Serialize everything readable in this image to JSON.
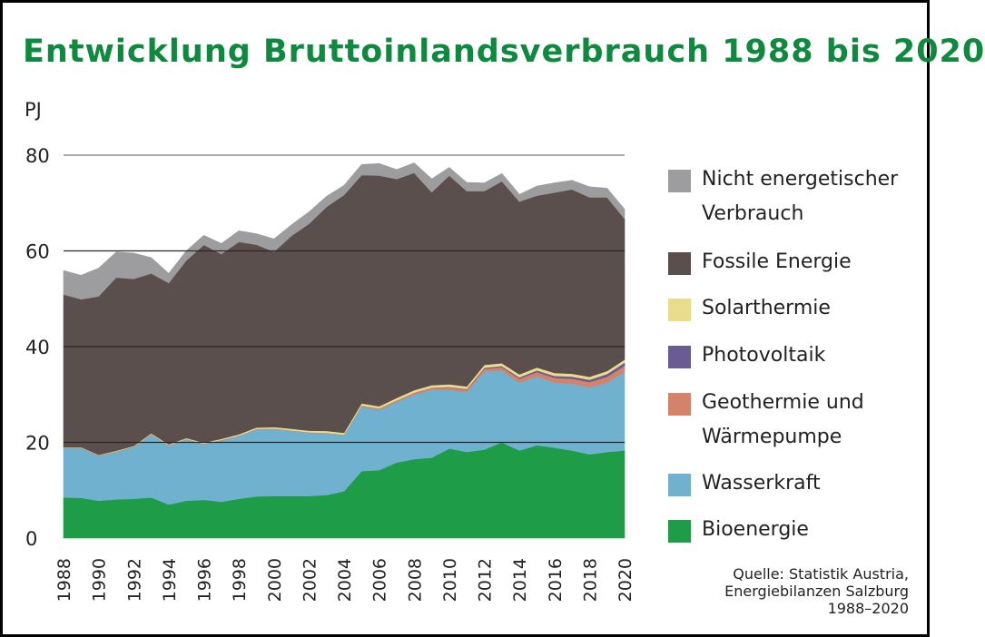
{
  "chart_data": {
    "type": "area",
    "stacked": true,
    "title": "Entwicklung Bruttoinlandsverbrauch 1988 bis 2020",
    "ylabel": "PJ",
    "xlabel": "",
    "ylim": [
      0,
      80
    ],
    "yticks": [
      0,
      20,
      40,
      60,
      80
    ],
    "grid": true,
    "legend_position": "right",
    "x": [
      1988,
      1989,
      1990,
      1991,
      1992,
      1993,
      1994,
      1995,
      1996,
      1997,
      1998,
      1999,
      2000,
      2001,
      2002,
      2003,
      2004,
      2005,
      2006,
      2007,
      2008,
      2009,
      2010,
      2011,
      2012,
      2013,
      2014,
      2015,
      2016,
      2017,
      2018,
      2019,
      2020
    ],
    "xticks": [
      "1988",
      "1990",
      "1992",
      "1994",
      "1996",
      "1998",
      "2000",
      "2002",
      "2004",
      "2006",
      "2008",
      "2010",
      "2012",
      "2014",
      "2016",
      "2018",
      "2020"
    ],
    "series": [
      {
        "name": "Bioenergie",
        "color": "#1e9c48",
        "values": [
          8.5,
          8.4,
          7.8,
          8.1,
          8.2,
          8.5,
          7.0,
          7.8,
          8.0,
          7.6,
          8.2,
          8.7,
          8.8,
          8.8,
          8.8,
          9.0,
          9.8,
          14.0,
          14.2,
          15.8,
          16.5,
          16.8,
          18.7,
          18.0,
          18.5,
          20.0,
          18.3,
          19.4,
          18.9,
          18.3,
          17.5,
          18.0,
          18.3
        ]
      },
      {
        "name": "Wasserkraft",
        "color": "#6fb1cf",
        "values": [
          10.3,
          10.4,
          9.4,
          9.9,
          10.8,
          13.1,
          12.3,
          12.8,
          11.6,
          12.8,
          13.1,
          14.0,
          14.0,
          13.6,
          13.2,
          12.9,
          11.7,
          13.5,
          12.6,
          12.7,
          13.5,
          14.2,
          12.3,
          12.5,
          16.3,
          15.0,
          14.2,
          14.4,
          13.6,
          14.0,
          14.0,
          14.5,
          16.5
        ]
      },
      {
        "name": "Geothermie und\nWärmepumpe",
        "color": "#d4826a",
        "values": [
          0.1,
          0.1,
          0.1,
          0.1,
          0.1,
          0.1,
          0.1,
          0.1,
          0.1,
          0.1,
          0.1,
          0.1,
          0.1,
          0.1,
          0.1,
          0.1,
          0.1,
          0.2,
          0.3,
          0.3,
          0.4,
          0.4,
          0.5,
          0.5,
          0.6,
          0.7,
          0.8,
          0.9,
          1.0,
          1.0,
          1.1,
          1.2,
          1.2
        ]
      },
      {
        "name": "Photovoltaik",
        "color": "#6b5b95",
        "values": [
          0,
          0,
          0,
          0,
          0,
          0,
          0,
          0,
          0,
          0,
          0,
          0,
          0,
          0,
          0,
          0,
          0,
          0,
          0,
          0,
          0,
          0.05,
          0.1,
          0.15,
          0.2,
          0.25,
          0.3,
          0.35,
          0.4,
          0.45,
          0.5,
          0.6,
          0.7
        ]
      },
      {
        "name": "Solarthermie",
        "color": "#e9dc8a",
        "values": [
          0.1,
          0.1,
          0.1,
          0.15,
          0.15,
          0.2,
          0.2,
          0.2,
          0.25,
          0.25,
          0.3,
          0.3,
          0.3,
          0.35,
          0.35,
          0.4,
          0.4,
          0.45,
          0.45,
          0.5,
          0.5,
          0.5,
          0.55,
          0.55,
          0.6,
          0.6,
          0.6,
          0.6,
          0.6,
          0.6,
          0.6,
          0.6,
          0.6
        ]
      },
      {
        "name": "Fossile Energie",
        "color": "#5a4f4c",
        "values": [
          31.9,
          30.9,
          33.1,
          36.2,
          34.9,
          33.4,
          33.7,
          37.1,
          41.3,
          38.6,
          40.2,
          38.2,
          36.6,
          40.3,
          43.2,
          46.8,
          49.7,
          47.7,
          48.2,
          45.7,
          45.4,
          40.3,
          43.6,
          40.8,
          36.3,
          38.0,
          36.1,
          35.9,
          37.7,
          38.5,
          37.5,
          36.3,
          29.4
        ]
      },
      {
        "name": "Nicht energetischer\nVerbrauch",
        "color": "#9d9d9f",
        "values": [
          5.0,
          5.0,
          5.9,
          5.3,
          5.4,
          3.3,
          2.0,
          2.0,
          2.0,
          2.2,
          2.3,
          2.3,
          2.7,
          2.3,
          2.5,
          2.2,
          2.0,
          2.2,
          2.5,
          2.0,
          2.1,
          2.8,
          1.7,
          1.8,
          1.7,
          1.6,
          1.5,
          2.0,
          2.0,
          1.9,
          2.2,
          1.9,
          2.0
        ]
      }
    ],
    "source": "Quelle: Statistik Austria,\nEnergiebilanzen Salzburg\n1988–2020"
  }
}
